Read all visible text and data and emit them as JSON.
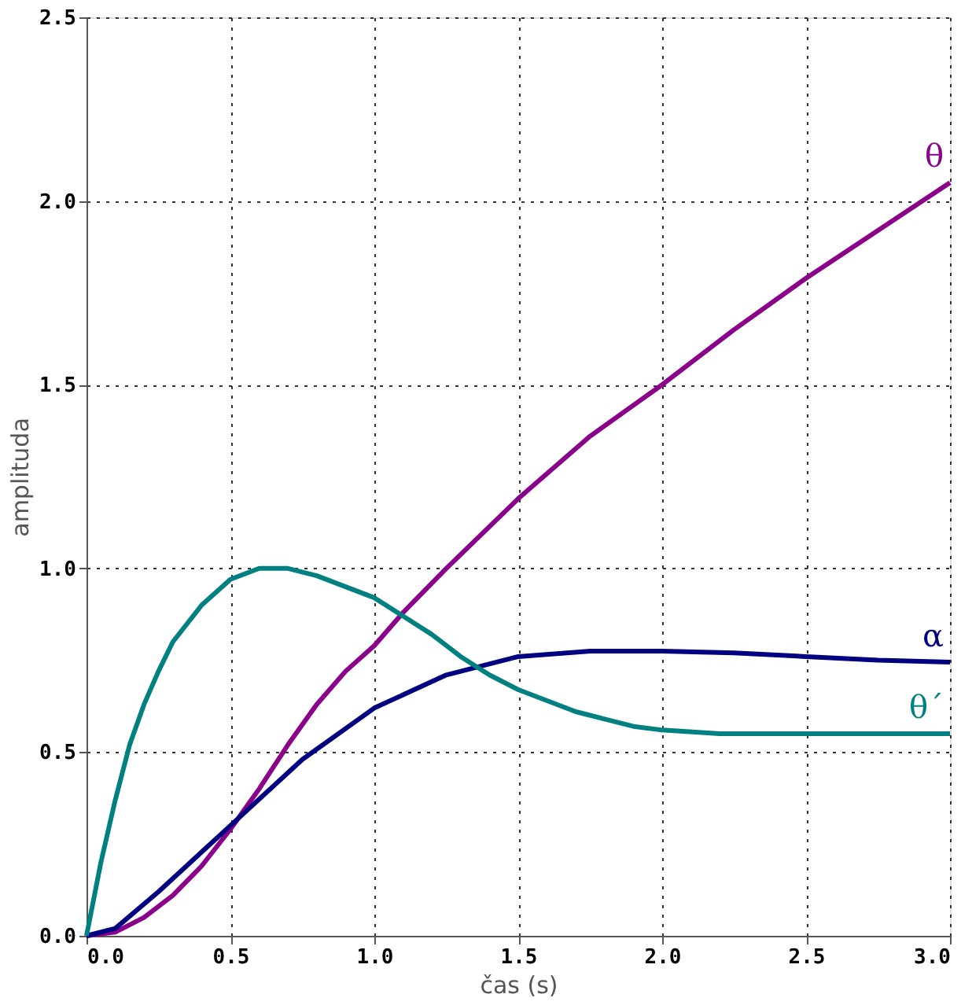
{
  "chart_data": {
    "type": "line",
    "xlabel": "čas (s)",
    "ylabel": "amplituda",
    "xlim": [
      0,
      3
    ],
    "ylim": [
      0,
      2.5
    ],
    "xticks": [
      {
        "value": 0,
        "label": "0.0"
      },
      {
        "value": 0.5,
        "label": "0.5"
      },
      {
        "value": 1,
        "label": "1.0"
      },
      {
        "value": 1.5,
        "label": "1.5"
      },
      {
        "value": 2,
        "label": "2.0"
      },
      {
        "value": 2.5,
        "label": "2.5"
      },
      {
        "value": 3,
        "label": "3.0"
      }
    ],
    "yticks": [
      {
        "value": 0,
        "label": "0.0"
      },
      {
        "value": 0.5,
        "label": "0.5"
      },
      {
        "value": 1,
        "label": "1.0"
      },
      {
        "value": 1.5,
        "label": "1.5"
      },
      {
        "value": 2,
        "label": "2.0"
      },
      {
        "value": 2.5,
        "label": "2.5"
      }
    ],
    "grid": true,
    "marker": "none",
    "line_style": "solid",
    "series": [
      {
        "name": "θ",
        "color": "#8b008b",
        "x": [
          0,
          0.1,
          0.2,
          0.3,
          0.4,
          0.5,
          0.6,
          0.7,
          0.8,
          0.9,
          1.0,
          1.1,
          1.25,
          1.5,
          1.75,
          2.0,
          2.25,
          2.5,
          2.75,
          3.0
        ],
        "values": [
          0,
          0.01,
          0.05,
          0.11,
          0.19,
          0.29,
          0.4,
          0.52,
          0.63,
          0.72,
          0.79,
          0.88,
          1.0,
          1.19,
          1.36,
          1.5,
          1.65,
          1.79,
          1.92,
          2.05
        ]
      },
      {
        "name": "α",
        "color": "#000080",
        "x": [
          0,
          0.1,
          0.25,
          0.5,
          0.75,
          1.0,
          1.25,
          1.5,
          1.75,
          2.0,
          2.25,
          2.5,
          2.75,
          3.0
        ],
        "values": [
          0,
          0.02,
          0.12,
          0.3,
          0.48,
          0.62,
          0.71,
          0.76,
          0.775,
          0.775,
          0.77,
          0.76,
          0.75,
          0.745
        ]
      },
      {
        "name": "θ´",
        "color": "#008080",
        "x": [
          0,
          0.05,
          0.1,
          0.15,
          0.2,
          0.25,
          0.3,
          0.4,
          0.5,
          0.6,
          0.7,
          0.8,
          0.9,
          1.0,
          1.1,
          1.2,
          1.3,
          1.4,
          1.5,
          1.6,
          1.7,
          1.8,
          1.9,
          2.0,
          2.2,
          2.5,
          3.0
        ],
        "values": [
          0,
          0.2,
          0.37,
          0.52,
          0.63,
          0.72,
          0.8,
          0.9,
          0.97,
          1.0,
          1.0,
          0.98,
          0.95,
          0.92,
          0.87,
          0.82,
          0.76,
          0.71,
          0.67,
          0.64,
          0.61,
          0.59,
          0.57,
          0.56,
          0.55,
          0.55,
          0.55
        ]
      }
    ]
  }
}
